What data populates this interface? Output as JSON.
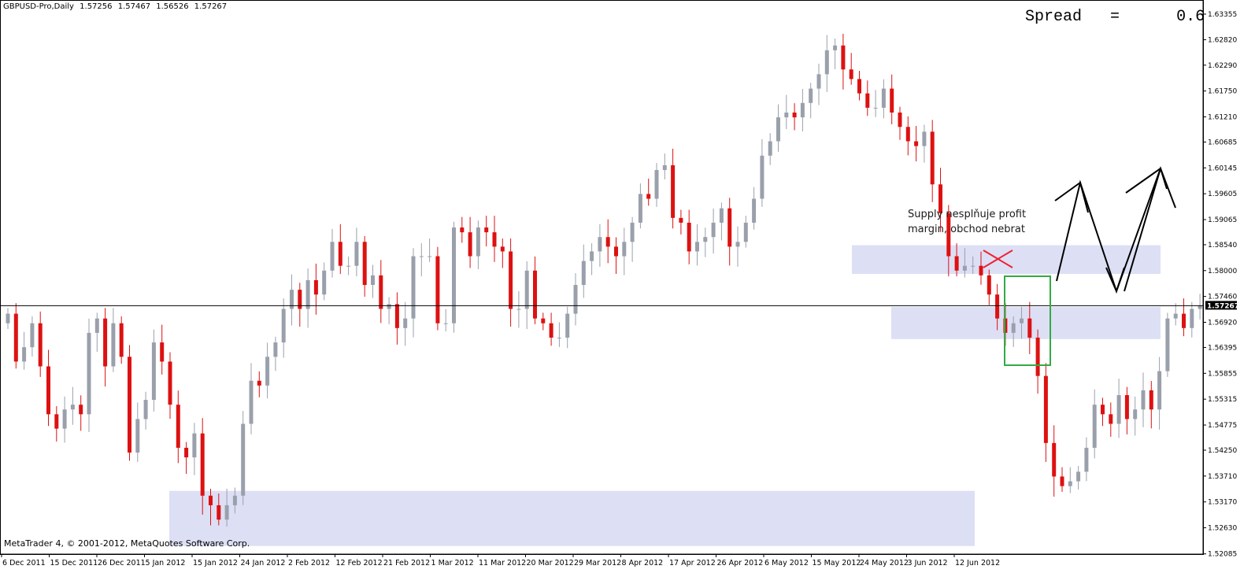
{
  "header": {
    "symbol": "GBPUSD-Pro,Daily",
    "open": "1.57256",
    "high": "1.57467",
    "low": "1.56526",
    "close": "1.57267"
  },
  "spread_label": "Spread",
  "spread_eq": "=",
  "spread_value": "0.6",
  "footer": "MetaTrader 4, © 2001-2012, MetaQuotes Software Corp.",
  "annotation": {
    "line1": "Supply nesplňuje profit",
    "line2": "margin, obchod nebrat"
  },
  "colors": {
    "bull": "#9aa0ab",
    "bear": "#dd1111",
    "zone": "#d7d9f3",
    "green_box": "#33aa44",
    "cross": "#ee2233"
  },
  "chart_data": {
    "type": "candlestick",
    "ylim": [
      1.5208,
      1.6365
    ],
    "yticks": [
      "1.63355",
      "1.62820",
      "1.62290",
      "1.61750",
      "1.61210",
      "1.60685",
      "1.60145",
      "1.59605",
      "1.59065",
      "1.58540",
      "1.58000",
      "1.57460",
      "1.56920",
      "1.56395",
      "1.55855",
      "1.55315",
      "1.54775",
      "1.54250",
      "1.53710",
      "1.53170",
      "1.52630",
      "1.52085"
    ],
    "current_price": "1.57267",
    "xticks": [
      "6 Dec 2011",
      "15 Dec 2011",
      "26 Dec 2011",
      "5 Jan 2012",
      "15 Jan 2012",
      "24 Jan 2012",
      "2 Feb 2012",
      "12 Feb 2012",
      "21 Feb 2012",
      "1 Mar 2012",
      "11 Mar 2012",
      "20 Mar 2012",
      "29 Mar 2012",
      "8 Apr 2012",
      "17 Apr 2012",
      "26 Apr 2012",
      "6 May 2012",
      "15 May 2012",
      "24 May 2012",
      "3 Jun 2012",
      "12 Jun 2012"
    ],
    "zones": [
      {
        "from": 1.5225,
        "to": 1.534
      },
      {
        "from": 1.5793,
        "to": 1.5853
      },
      {
        "from": 1.5657,
        "to": 1.5724
      }
    ],
    "closes": [
      1.571,
      1.561,
      1.564,
      1.569,
      1.56,
      1.55,
      1.547,
      1.551,
      1.552,
      1.55,
      1.567,
      1.57,
      1.56,
      1.569,
      1.562,
      1.542,
      1.549,
      1.553,
      1.565,
      1.561,
      1.552,
      1.543,
      1.541,
      1.546,
      1.533,
      1.531,
      1.528,
      1.531,
      1.533,
      1.548,
      1.557,
      1.556,
      1.562,
      1.565,
      1.572,
      1.576,
      1.572,
      1.578,
      1.575,
      1.58,
      1.586,
      1.581,
      1.581,
      1.586,
      1.577,
      1.579,
      1.572,
      1.573,
      1.568,
      1.57,
      1.583,
      1.583,
      1.583,
      1.569,
      1.569,
      1.589,
      1.588,
      1.583,
      1.589,
      1.588,
      1.585,
      1.584,
      1.572,
      1.572,
      1.58,
      1.57,
      1.569,
      1.566,
      1.566,
      1.571,
      1.577,
      1.582,
      1.584,
      1.587,
      1.585,
      1.583,
      1.586,
      1.59,
      1.596,
      1.595,
      1.601,
      1.602,
      1.591,
      1.59,
      1.584,
      1.586,
      1.587,
      1.59,
      1.593,
      1.585,
      1.586,
      1.59,
      1.595,
      1.604,
      1.607,
      1.612,
      1.613,
      1.612,
      1.615,
      1.618,
      1.621,
      1.626,
      1.627,
      1.622,
      1.62,
      1.617,
      1.614,
      1.614,
      1.618,
      1.613,
      1.61,
      1.607,
      1.606,
      1.609,
      1.598,
      1.592,
      1.583,
      1.58,
      1.581,
      1.581,
      1.579,
      1.575,
      1.57,
      1.567,
      1.569,
      1.57,
      1.566,
      1.558,
      1.544,
      1.537,
      1.535,
      1.536,
      1.538,
      1.543,
      1.552,
      1.55,
      1.548,
      1.554,
      1.549,
      1.551,
      1.555,
      1.551,
      1.559,
      1.57,
      1.571,
      1.568,
      1.572,
      1.5727
    ]
  }
}
